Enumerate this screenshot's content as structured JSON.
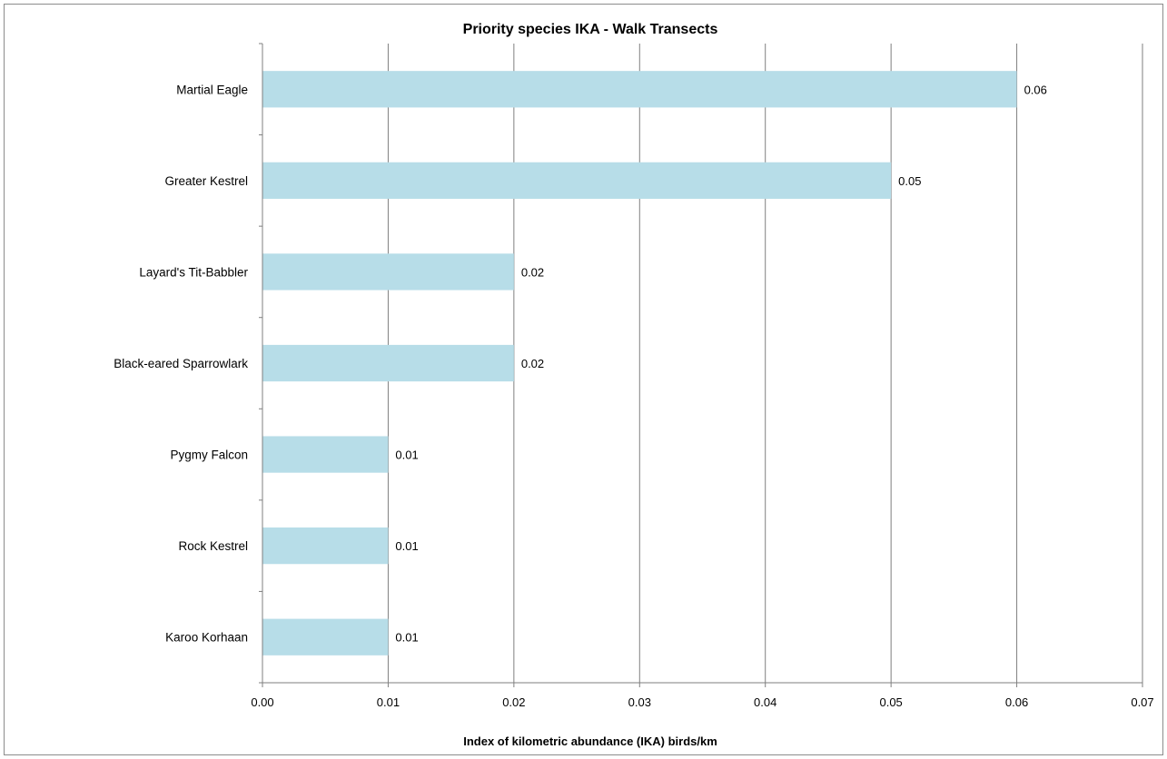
{
  "chart_data": {
    "type": "bar",
    "orientation": "horizontal",
    "title": "Priority species IKA - Walk Transects",
    "xlabel": "Index of kilometric abundance  (IKA) birds/km",
    "ylabel": "",
    "categories": [
      "Martial Eagle",
      "Greater Kestrel",
      "Layard's Tit-Babbler",
      "Black-eared Sparrowlark",
      "Pygmy Falcon",
      "Rock Kestrel",
      "Karoo Korhaan"
    ],
    "values": [
      0.06,
      0.05,
      0.02,
      0.02,
      0.01,
      0.01,
      0.01
    ],
    "data_labels": [
      "0.06",
      "0.05",
      "0.02",
      "0.02",
      "0.01",
      "0.01",
      "0.01"
    ],
    "xlim": [
      0,
      0.07
    ],
    "xticks": [
      "0.00",
      "0.01",
      "0.02",
      "0.03",
      "0.04",
      "0.05",
      "0.06",
      "0.07"
    ],
    "grid": "vertical major gridlines",
    "legend": "none",
    "bar_color": "#b7dde8",
    "gridline_color": "#7f7f7f"
  }
}
